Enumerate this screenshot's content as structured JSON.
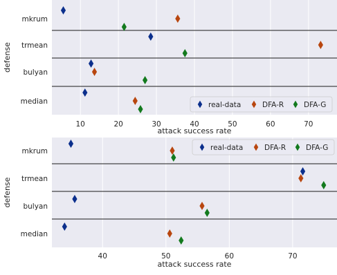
{
  "colors": {
    "background": "#eaeaf2",
    "grid": "#ffffff",
    "separator": "#1a1a1a",
    "text": "#262626",
    "real-data": "#0b2f8c",
    "DFA-R": "#b8460f",
    "DFA-G": "#137a1e"
  },
  "chart_data": [
    {
      "type": "scatter",
      "orientation": "horizontal-categorical",
      "xlabel": "attack success rate",
      "ylabel": "defense",
      "categories": [
        "mkrum",
        "trmean",
        "bulyan",
        "median"
      ],
      "xlim": [
        2.5,
        77.5
      ],
      "xticks": [
        10,
        20,
        30,
        40,
        50,
        60,
        70
      ],
      "grid": true,
      "legend": {
        "placement": "bottom-right",
        "entries": [
          "real-data",
          "DFA-R",
          "DFA-G"
        ]
      },
      "series": [
        {
          "name": "real-data",
          "values": [
            5.5,
            28.5,
            12.8,
            11.2
          ]
        },
        {
          "name": "DFA-R",
          "values": [
            35.6,
            73.2,
            13.7,
            24.4
          ]
        },
        {
          "name": "DFA-G",
          "values": [
            21.5,
            37.5,
            27.0,
            25.8
          ]
        }
      ]
    },
    {
      "type": "scatter",
      "orientation": "horizontal-categorical",
      "xlabel": "attack success rate",
      "ylabel": "defense",
      "categories": [
        "mkrum",
        "trmean",
        "bulyan",
        "median"
      ],
      "xlim": [
        32,
        77
      ],
      "xticks": [
        40,
        50,
        60,
        70
      ],
      "grid": true,
      "legend": {
        "placement": "top-right",
        "entries": [
          "real-data",
          "DFA-R",
          "DFA-G"
        ]
      },
      "series": [
        {
          "name": "real-data",
          "values": [
            35.0,
            71.6,
            35.6,
            34.0
          ]
        },
        {
          "name": "DFA-R",
          "values": [
            51.0,
            71.3,
            55.7,
            50.6
          ]
        },
        {
          "name": "DFA-G",
          "values": [
            51.2,
            74.9,
            56.5,
            52.4
          ]
        }
      ]
    }
  ]
}
